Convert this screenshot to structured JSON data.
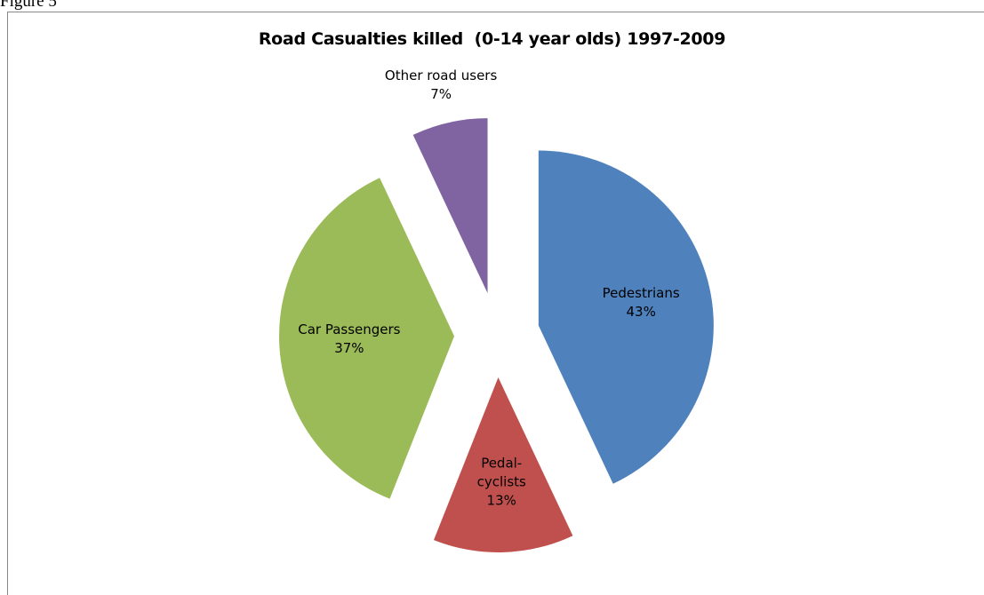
{
  "figure_label": "Figure 5",
  "chart_data": {
    "type": "pie",
    "title": "Road Casualties killed  (0-14 year olds) 1997-2009",
    "categories": [
      "Pedestrians",
      "Pedal-cyclists",
      "Car Passengers",
      "Other road users"
    ],
    "values": [
      43,
      13,
      37,
      7
    ],
    "value_labels": [
      "43%",
      "13%",
      "37%",
      "7%"
    ],
    "colors": [
      "#4f81bd",
      "#c0504d",
      "#9bbb59",
      "#8064a2"
    ],
    "exploded": true
  }
}
